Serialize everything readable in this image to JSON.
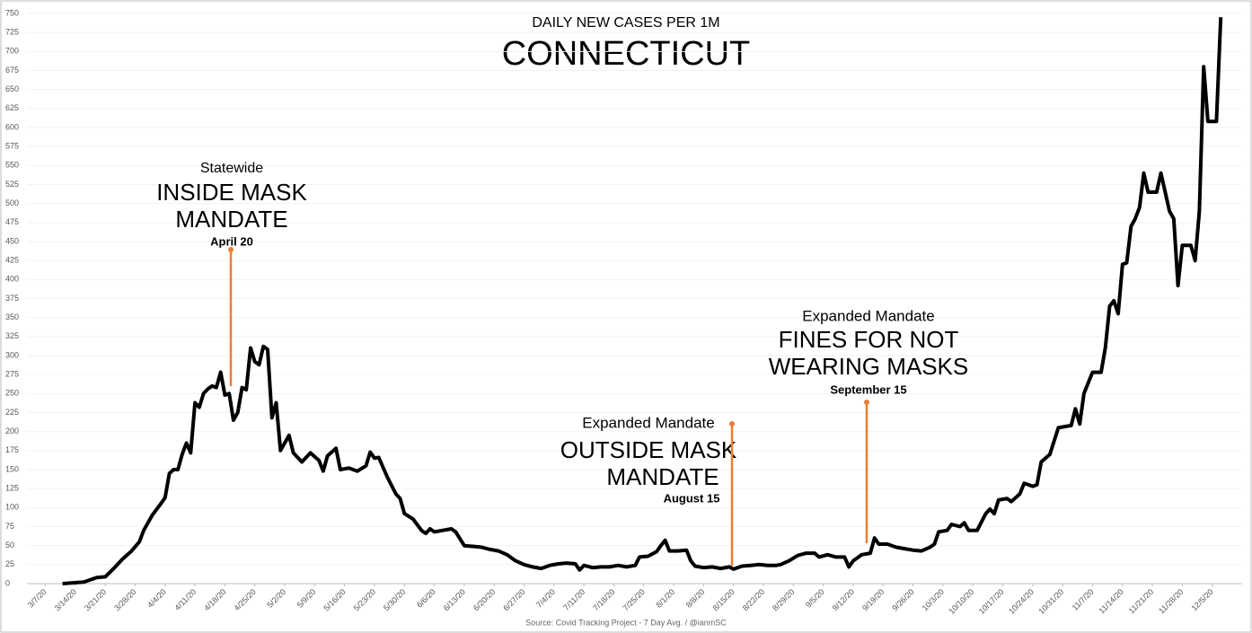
{
  "chart_data": {
    "type": "line",
    "title": "DAILY NEW CASES PER 1M",
    "subtitle": "CONNECTICUT",
    "source": "Source: Covid Tracking Project - 7 Day Avg. / @ianmSC",
    "color": "#000000",
    "x": [
      "3/11/20",
      "3/16/20",
      "3/19/20",
      "3/21/20",
      "3/23/20",
      "3/25/20",
      "3/27/20",
      "3/29/20",
      "3/30/20",
      "4/1/20",
      "4/3/20",
      "4/4/20",
      "4/5/20",
      "4/6/20",
      "4/7/20",
      "4/8/20",
      "4/9/20",
      "4/10/20",
      "4/11/20",
      "4/12/20",
      "4/13/20",
      "4/14/20",
      "4/15/20",
      "4/16/20",
      "4/17/20",
      "4/18/20",
      "4/19/20",
      "4/20/20",
      "4/21/20",
      "4/22/20",
      "4/23/20",
      "4/24/20",
      "4/25/20",
      "4/26/20",
      "4/27/20",
      "4/28/20",
      "4/29/20",
      "4/30/20",
      "5/1/20",
      "5/3/20",
      "5/4/20",
      "5/6/20",
      "5/8/20",
      "5/10/20",
      "5/11/20",
      "5/12/20",
      "5/14/20",
      "5/15/20",
      "5/17/20",
      "5/19/20",
      "5/21/20",
      "5/22/20",
      "5/23/20",
      "5/24/20",
      "5/26/20",
      "5/28/20",
      "5/29/20",
      "5/30/20",
      "6/1/20",
      "6/3/20",
      "6/4/20",
      "6/5/20",
      "6/6/20",
      "6/8/20",
      "6/10/20",
      "6/11/20",
      "6/13/20",
      "6/15/20",
      "6/17/20",
      "6/19/20",
      "6/21/20",
      "6/23/20",
      "6/25/20",
      "6/27/20",
      "6/29/20",
      "7/1/20",
      "7/3/20",
      "7/5/20",
      "7/7/20",
      "7/9/20",
      "7/10/20",
      "7/11/20",
      "7/13/20",
      "7/15/20",
      "7/17/20",
      "7/19/20",
      "7/21/20",
      "7/23/20",
      "7/24/20",
      "7/26/20",
      "7/28/20",
      "7/29/20",
      "7/30/20",
      "7/31/20",
      "8/2/20",
      "8/4/20",
      "8/5/20",
      "8/6/20",
      "8/8/20",
      "8/10/20",
      "8/12/20",
      "8/14/20",
      "8/15/20",
      "8/17/20",
      "8/19/20",
      "8/21/20",
      "8/23/20",
      "8/25/20",
      "8/26/20",
      "8/28/20",
      "8/30/20",
      "9/1/20",
      "9/3/20",
      "9/4/20",
      "9/6/20",
      "9/8/20",
      "9/10/20",
      "9/11/20",
      "9/12/20",
      "9/14/20",
      "9/16/20",
      "9/17/20",
      "9/18/20",
      "9/20/20",
      "9/22/20",
      "9/24/20",
      "9/26/20",
      "9/28/20",
      "9/30/20",
      "10/1/20",
      "10/2/20",
      "10/4/20",
      "10/5/20",
      "10/7/20",
      "10/8/20",
      "10/9/20",
      "10/11/20",
      "10/13/20",
      "10/14/20",
      "10/15/20",
      "10/16/20",
      "10/18/20",
      "10/19/20",
      "10/21/20",
      "10/22/20",
      "10/24/20",
      "10/25/20",
      "10/26/20",
      "10/28/20",
      "10/30/20",
      "11/2/20",
      "11/3/20",
      "11/4/20",
      "11/5/20",
      "11/7/20",
      "11/9/20",
      "11/10/20",
      "11/11/20",
      "11/12/20",
      "11/13/20",
      "11/14/20",
      "11/15/20",
      "11/16/20",
      "11/17/20",
      "11/18/20",
      "11/19/20",
      "11/20/20",
      "11/22/20",
      "11/23/20",
      "11/25/20",
      "11/26/20",
      "11/27/20",
      "11/28/20",
      "11/30/20",
      "12/1/20",
      "12/2/20",
      "12/3/20",
      "12/4/20",
      "12/6/20",
      "12/7/20"
    ],
    "values": [
      0,
      2,
      8,
      9,
      20,
      32,
      42,
      55,
      70,
      90,
      105,
      113,
      145,
      150,
      150,
      170,
      185,
      172,
      238,
      232,
      250,
      256,
      260,
      258,
      278,
      248,
      250,
      215,
      225,
      258,
      255,
      310,
      292,
      288,
      312,
      308,
      218,
      238,
      175,
      195,
      172,
      160,
      172,
      162,
      148,
      168,
      178,
      150,
      152,
      148,
      155,
      173,
      165,
      166,
      140,
      118,
      112,
      92,
      85,
      70,
      66,
      72,
      68,
      70,
      72,
      68,
      50,
      49,
      48,
      45,
      43,
      38,
      30,
      25,
      22,
      20,
      24,
      26,
      27,
      26,
      18,
      24,
      21,
      22,
      22,
      24,
      22,
      24,
      35,
      36,
      42,
      50,
      57,
      43,
      43,
      44,
      30,
      23,
      21,
      22,
      20,
      22,
      19,
      23,
      24,
      25,
      24,
      24,
      25,
      30,
      37,
      40,
      40,
      35,
      38,
      35,
      35,
      22,
      30,
      38,
      40,
      60,
      52,
      52,
      48,
      46,
      44,
      43,
      48,
      52,
      68,
      70,
      78,
      75,
      80,
      70,
      70,
      92,
      98,
      92,
      110,
      112,
      108,
      118,
      132,
      128,
      130,
      160,
      170,
      205,
      208,
      230,
      210,
      250,
      278,
      278,
      310,
      365,
      372,
      355,
      420,
      422,
      470,
      480,
      495,
      540,
      515,
      515,
      540,
      490,
      480,
      392,
      445,
      445,
      425,
      490,
      680,
      608,
      608,
      745
    ],
    "xlim": [
      "3/1/20",
      "12/12/20"
    ],
    "xticks": [
      "3/7/20",
      "3/14/20",
      "3/21/20",
      "3/28/20",
      "4/4/20",
      "4/11/20",
      "4/18/20",
      "4/25/20",
      "5/2/20",
      "5/9/20",
      "5/16/20",
      "5/23/20",
      "5/30/20",
      "6/6/20",
      "6/13/20",
      "6/20/20",
      "6/27/20",
      "7/4/20",
      "7/11/20",
      "7/18/20",
      "7/25/20",
      "8/1/20",
      "8/8/20",
      "8/15/20",
      "8/22/20",
      "8/29/20",
      "9/5/20",
      "9/12/20",
      "9/19/20",
      "9/26/20",
      "10/3/20",
      "10/10/20",
      "10/17/20",
      "10/24/20",
      "10/31/20",
      "11/7/20",
      "11/14/20",
      "11/21/20",
      "11/28/20",
      "12/5/20"
    ],
    "ylim": [
      0,
      750
    ],
    "yticks": [
      0,
      25,
      50,
      75,
      100,
      125,
      150,
      175,
      200,
      225,
      250,
      275,
      300,
      325,
      350,
      375,
      400,
      425,
      450,
      475,
      500,
      525,
      550,
      575,
      600,
      625,
      650,
      675,
      700,
      725,
      750
    ],
    "annotations": [
      {
        "lines": [
          "Statewide",
          "INSIDE MASK",
          "MANDATE",
          "April 20"
        ]
      },
      {
        "lines": [
          "Expanded Mandate",
          "OUTSIDE MASK",
          "MANDATE",
          "August 15"
        ]
      },
      {
        "lines": [
          "Expanded Mandate",
          "FINES FOR NOT",
          "WEARING MASKS",
          "September 15"
        ]
      }
    ]
  }
}
